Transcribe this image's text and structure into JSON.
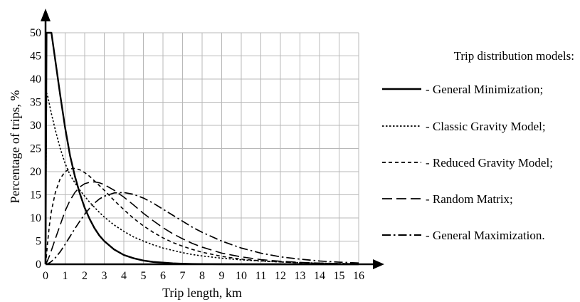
{
  "chart_data": {
    "type": "line",
    "title": "",
    "xlabel": "Trip length, km",
    "ylabel": "Percentage of trips, %",
    "xlim": [
      0,
      16
    ],
    "ylim": [
      0,
      50
    ],
    "xticks": [
      "0",
      "1",
      "2",
      "3",
      "4",
      "5",
      "6",
      "7",
      "8",
      "9",
      "10",
      "11",
      "12",
      "13",
      "14",
      "15",
      "16"
    ],
    "yticks": [
      "0",
      "5",
      "10",
      "15",
      "20",
      "25",
      "30",
      "35",
      "40",
      "45",
      "50"
    ],
    "grid": true,
    "legend_title": "Trip distribution models:",
    "legend_position": "right",
    "x": [
      0,
      0.05,
      0.1,
      0.2,
      0.3,
      0.5,
      0.75,
      1,
      1.25,
      1.5,
      1.75,
      2,
      2.25,
      2.5,
      2.75,
      3,
      3.5,
      4,
      4.5,
      5,
      5.5,
      6,
      6.5,
      7,
      7.5,
      8,
      9,
      10,
      11,
      12,
      13,
      14,
      15,
      16
    ],
    "series": [
      {
        "name": "- General Minimization;",
        "style": "solid",
        "values": [
          0,
          50.0,
          50.0,
          50.0,
          50.0,
          44.0,
          36.5,
          29.5,
          23.5,
          19.0,
          15.3,
          12.2,
          9.8,
          7.8,
          6.2,
          5.0,
          3.2,
          2.0,
          1.3,
          0.8,
          0.5,
          0.35,
          0.2,
          0.12,
          0.07,
          0.05,
          0.02,
          0.01,
          0,
          0,
          0,
          0,
          0,
          0
        ]
      },
      {
        "name": "- Classic Gravity Model;",
        "style": "dotted",
        "values": [
          0,
          37.0,
          36.5,
          34.5,
          32.5,
          29.0,
          25.0,
          21.8,
          19.3,
          17.6,
          16.0,
          14.7,
          13.4,
          12.3,
          11.2,
          10.2,
          8.5,
          7.1,
          5.9,
          5.0,
          4.2,
          3.5,
          3.0,
          2.5,
          2.1,
          1.8,
          1.3,
          0.95,
          0.7,
          0.5,
          0.35,
          0.25,
          0.15,
          0.1
        ]
      },
      {
        "name": "- Reduced Gravity Model;",
        "style": "short-dash",
        "values": [
          0,
          2.0,
          4.5,
          8.5,
          11.5,
          15.5,
          18.5,
          20.0,
          20.6,
          20.7,
          20.4,
          19.8,
          19.0,
          18.0,
          17.0,
          16.0,
          13.8,
          11.8,
          9.9,
          8.3,
          6.9,
          5.7,
          4.7,
          3.9,
          3.2,
          2.6,
          1.7,
          1.1,
          0.75,
          0.5,
          0.32,
          0.2,
          0.12,
          0.07
        ]
      },
      {
        "name": "- Random Matrix;",
        "style": "long-dash",
        "values": [
          0,
          0.3,
          0.8,
          1.8,
          3.0,
          5.5,
          8.5,
          11.5,
          13.8,
          15.5,
          16.7,
          17.4,
          17.7,
          17.8,
          17.6,
          17.2,
          16.0,
          14.5,
          12.8,
          11.0,
          9.4,
          7.9,
          6.6,
          5.5,
          4.5,
          3.7,
          2.4,
          1.6,
          1.0,
          0.65,
          0.4,
          0.25,
          0.15,
          0.08
        ]
      },
      {
        "name": "- General Maximization.",
        "style": "dash-dot",
        "values": [
          0,
          0,
          0.1,
          0.3,
          0.6,
          1.4,
          2.7,
          4.3,
          6.0,
          7.7,
          9.3,
          10.8,
          12.1,
          13.2,
          14.1,
          14.7,
          15.4,
          15.5,
          15.1,
          14.3,
          13.2,
          11.9,
          10.6,
          9.3,
          8.0,
          6.9,
          5.0,
          3.5,
          2.4,
          1.6,
          1.1,
          0.7,
          0.45,
          0.28
        ]
      }
    ]
  }
}
